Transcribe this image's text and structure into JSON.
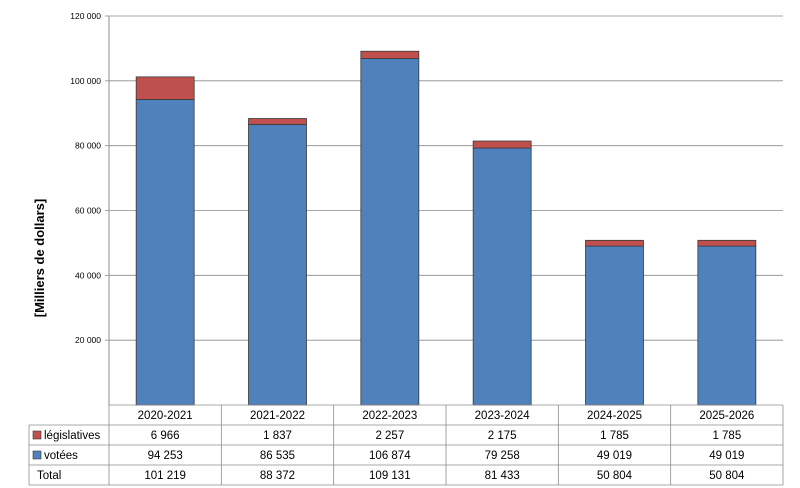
{
  "chart_data": {
    "type": "bar",
    "stacked": true,
    "title": "",
    "xlabel": "",
    "ylabel": "[Milliers de dollars]",
    "ylim": [
      0,
      120000
    ],
    "yticks": [
      20000,
      40000,
      60000,
      80000,
      100000,
      120000
    ],
    "ytick_labels": [
      "20 000",
      "40 000",
      "60 000",
      "80 000",
      "100 000",
      "120 000"
    ],
    "grid": true,
    "legend": "data table rows (left)",
    "categories": [
      "2020-2021",
      "2021-2022",
      "2022-2023",
      "2023-2024",
      "2024-2025",
      "2025-2026"
    ],
    "series": [
      {
        "name": "votées",
        "color": "#4f81bd",
        "values": [
          94253,
          86535,
          106874,
          79258,
          49019,
          49019
        ],
        "labels": [
          "94 253",
          "86 535",
          "106 874",
          "79 258",
          "49 019",
          "49 019"
        ]
      },
      {
        "name": "législatives",
        "color": "#c0504d",
        "values": [
          6966,
          1837,
          2257,
          2175,
          1785,
          1785
        ],
        "labels": [
          "6 966",
          "1 837",
          "2 257",
          "2 175",
          "1 785",
          "1 785"
        ]
      }
    ],
    "data_table": {
      "rows": [
        {
          "label": "législatives",
          "series": 1,
          "color": "#c0504d",
          "cells": [
            "6 966",
            "1 837",
            "2 257",
            "2 175",
            "1 785",
            "1 785"
          ]
        },
        {
          "label": "votées",
          "series": 0,
          "color": "#4f81bd",
          "cells": [
            "94 253",
            "86 535",
            "106 874",
            "79 258",
            "49 019",
            "49 019"
          ]
        },
        {
          "label": "Total",
          "series": null,
          "color": null,
          "cells": [
            "101 219",
            "88 372",
            "109 131",
            "81 433",
            "50 804",
            "50 804"
          ]
        }
      ]
    }
  }
}
